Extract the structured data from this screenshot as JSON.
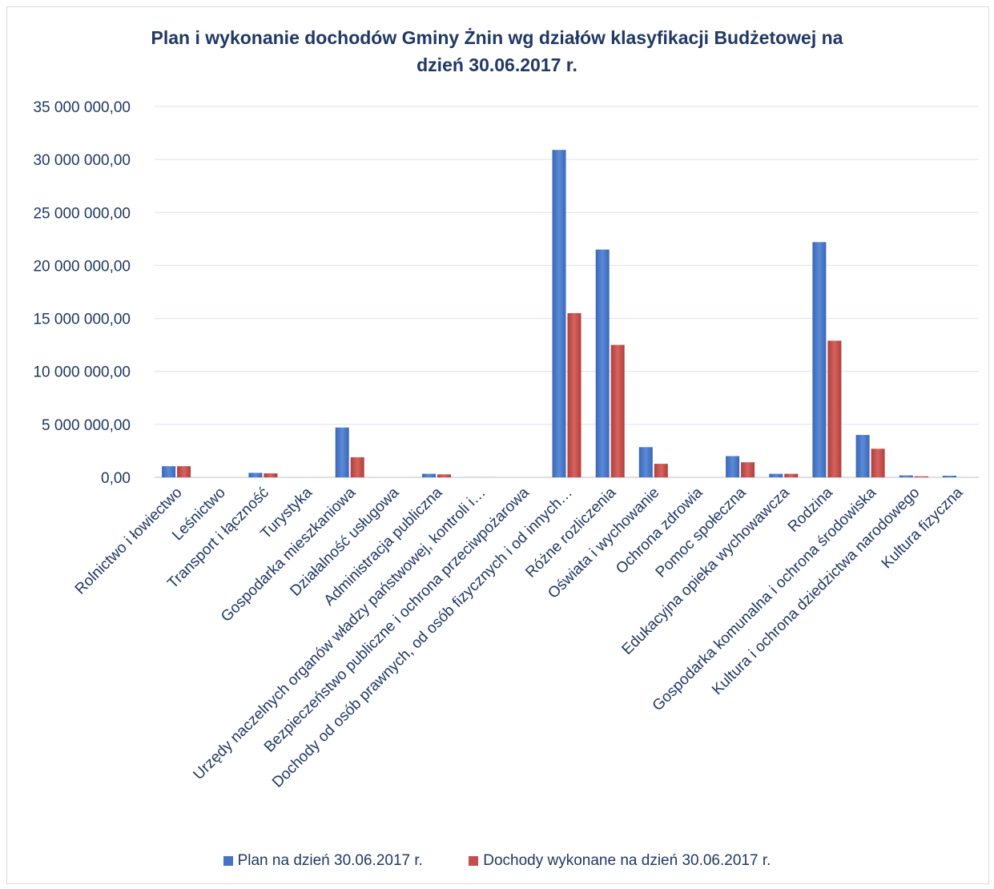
{
  "chart_data": {
    "type": "bar",
    "title_lines": [
      "Plan i wykonanie dochodów Gminy Żnin wg działów klasyfikacji Budżetowej na",
      "dzień 30.06.2017 r."
    ],
    "ylim": [
      0,
      35000000
    ],
    "ytick_values": [
      0,
      5000000,
      10000000,
      15000000,
      20000000,
      25000000,
      30000000,
      35000000
    ],
    "ytick_labels": [
      "0,00",
      "5 000 000,00",
      "10 000 000,00",
      "15 000 000,00",
      "20 000 000,00",
      "25 000 000,00",
      "30 000 000,00",
      "35 000 000,00"
    ],
    "grid": true,
    "legend_position": "bottom",
    "categories": [
      "Rolnictwo i łowiectwo",
      "Leśnictwo",
      "Transport i łączność",
      "Turystyka",
      "Gospodarka mieszkaniowa",
      "Działalność usługowa",
      "Administracja publiczna",
      "Urzędy naczelnych organów władzy państwowej, kontroli i…",
      "Bezpieczeństwo publiczne i ochrona przeciwpożarowa",
      "Dochody od osób prawnych, od osób fizycznych i od innych…",
      "Różne rozliczenia",
      "Oświata i wychowanie",
      "Ochrona zdrowia",
      "Pomoc społeczna",
      "Edukacyjna opieka wychowawcza",
      "Rodzina",
      "Gospodarka komunalna i ochrona środowiska",
      "Kultura i ochrona dziedzictwa narodowego",
      "Kultura fizyczna"
    ],
    "series": [
      {
        "name": "Plan na dzień 30.06.2017 r.",
        "color": "#4472c4",
        "values": [
          1050000,
          0,
          420000,
          0,
          4700000,
          0,
          330000,
          10000,
          0,
          30900000,
          21500000,
          2850000,
          0,
          2000000,
          330000,
          22200000,
          4000000,
          180000,
          150000
        ]
      },
      {
        "name": "Dochody wykonane na dzień 30.06.2017 r.",
        "color": "#c0504d",
        "values": [
          1050000,
          0,
          380000,
          0,
          1900000,
          0,
          280000,
          5000,
          0,
          15500000,
          12500000,
          1280000,
          0,
          1420000,
          330000,
          12900000,
          2700000,
          100000,
          0
        ]
      }
    ]
  }
}
